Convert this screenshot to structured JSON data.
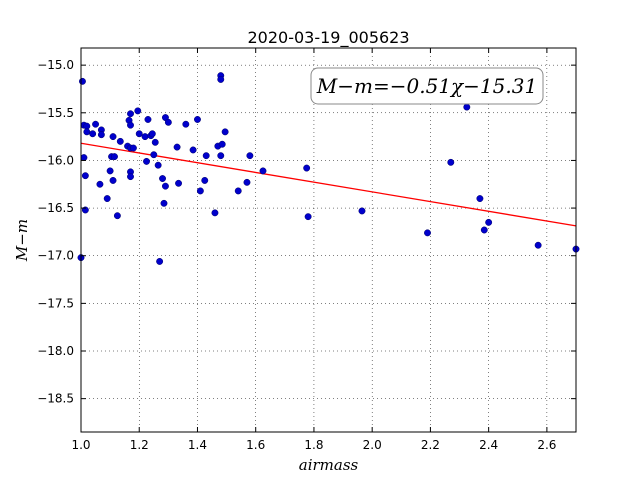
{
  "chart_data": {
    "type": "scatter",
    "title": "2020-03-19_005623",
    "xlabel": "airmass",
    "ylabel": "M−m",
    "xlim": [
      1.0,
      2.7
    ],
    "ylim": [
      -18.85,
      -14.82
    ],
    "x_ticks": [
      1.0,
      1.2,
      1.4,
      1.6,
      1.8,
      2.0,
      2.2,
      2.4,
      2.6
    ],
    "x_tick_labels": [
      "1.0",
      "1.2",
      "1.4",
      "1.6",
      "1.8",
      "2.0",
      "2.2",
      "2.4",
      "2.6"
    ],
    "y_ticks": [
      -15.0,
      -15.5,
      -16.0,
      -16.5,
      -17.0,
      -17.5,
      -18.0,
      -18.5
    ],
    "y_tick_labels": [
      "−15.0",
      "−15.5",
      "−16.0",
      "−16.5",
      "−17.0",
      "−17.5",
      "−18.0",
      "−18.5"
    ],
    "grid": true,
    "annotation": "M−m=−0.51χ−15.31",
    "fit": {
      "slope": -0.51,
      "intercept": -15.31,
      "color": "#ff0000"
    },
    "point_color": "#0000cc",
    "points": [
      [
        1.0,
        -17.02
      ],
      [
        1.005,
        -15.17
      ],
      [
        1.01,
        -15.63
      ],
      [
        1.01,
        -15.97
      ],
      [
        1.015,
        -16.16
      ],
      [
        1.015,
        -16.52
      ],
      [
        1.02,
        -15.64
      ],
      [
        1.02,
        -15.7
      ],
      [
        1.04,
        -15.72
      ],
      [
        1.05,
        -15.62
      ],
      [
        1.07,
        -15.68
      ],
      [
        1.07,
        -15.73
      ],
      [
        1.065,
        -16.25
      ],
      [
        1.09,
        -16.4
      ],
      [
        1.1,
        -16.11
      ],
      [
        1.105,
        -15.96
      ],
      [
        1.11,
        -15.75
      ],
      [
        1.115,
        -15.96
      ],
      [
        1.11,
        -16.21
      ],
      [
        1.125,
        -16.58
      ],
      [
        1.135,
        -15.8
      ],
      [
        1.16,
        -15.85
      ],
      [
        1.165,
        -15.58
      ],
      [
        1.17,
        -15.51
      ],
      [
        1.17,
        -15.63
      ],
      [
        1.17,
        -15.87
      ],
      [
        1.17,
        -16.12
      ],
      [
        1.17,
        -16.17
      ],
      [
        1.18,
        -15.87
      ],
      [
        1.195,
        -15.48
      ],
      [
        1.2,
        -15.72
      ],
      [
        1.22,
        -15.75
      ],
      [
        1.225,
        -16.01
      ],
      [
        1.23,
        -15.57
      ],
      [
        1.24,
        -15.74
      ],
      [
        1.245,
        -15.72
      ],
      [
        1.25,
        -15.94
      ],
      [
        1.255,
        -15.81
      ],
      [
        1.265,
        -16.05
      ],
      [
        1.27,
        -17.06
      ],
      [
        1.28,
        -16.19
      ],
      [
        1.285,
        -16.45
      ],
      [
        1.29,
        -15.55
      ],
      [
        1.29,
        -16.27
      ],
      [
        1.3,
        -15.6
      ],
      [
        1.33,
        -15.86
      ],
      [
        1.335,
        -16.24
      ],
      [
        1.36,
        -15.62
      ],
      [
        1.385,
        -15.89
      ],
      [
        1.4,
        -15.57
      ],
      [
        1.41,
        -16.32
      ],
      [
        1.425,
        -16.21
      ],
      [
        1.43,
        -15.95
      ],
      [
        1.46,
        -16.55
      ],
      [
        1.47,
        -15.85
      ],
      [
        1.48,
        -15.11
      ],
      [
        1.48,
        -15.15
      ],
      [
        1.48,
        -15.95
      ],
      [
        1.485,
        -15.83
      ],
      [
        1.495,
        -15.7
      ],
      [
        1.54,
        -16.32
      ],
      [
        1.57,
        -16.23
      ],
      [
        1.58,
        -15.95
      ],
      [
        1.625,
        -16.11
      ],
      [
        1.775,
        -16.08
      ],
      [
        1.78,
        -16.59
      ],
      [
        1.965,
        -16.53
      ],
      [
        2.19,
        -16.76
      ],
      [
        2.27,
        -16.02
      ],
      [
        2.325,
        -15.44
      ],
      [
        2.37,
        -16.4
      ],
      [
        2.385,
        -16.73
      ],
      [
        2.4,
        -16.65
      ],
      [
        2.57,
        -16.89
      ],
      [
        2.7,
        -16.93
      ]
    ]
  }
}
